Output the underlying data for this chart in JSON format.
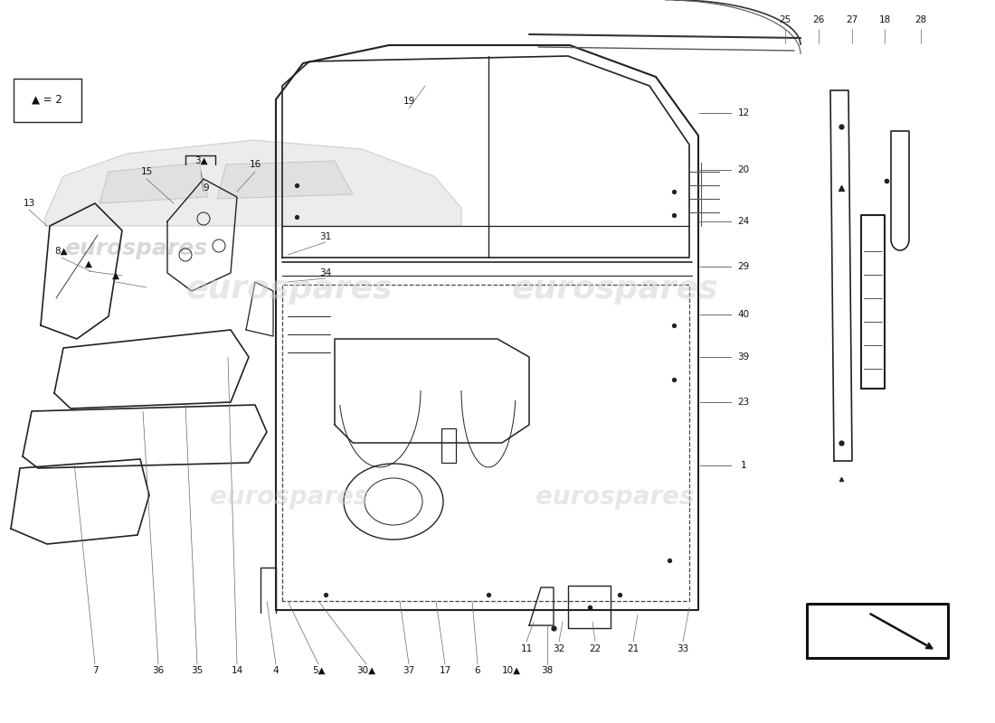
{
  "bg_color": "#ffffff",
  "watermark_text": "eurospares",
  "legend_text": "▲ = 2",
  "wm_color": "#d0d0d0",
  "line_color": "#222222",
  "label_color": "#111111"
}
